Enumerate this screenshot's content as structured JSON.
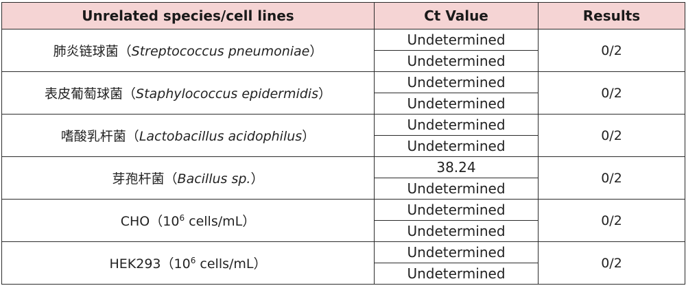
{
  "table": {
    "headers": [
      "Unrelated species/cell lines",
      "Ct Value",
      "Results"
    ],
    "rows": [
      {
        "sample_cn": "肺炎链球菌",
        "sample_paren_open": "（",
        "sample_latin": "Streptococcus pneumoniae",
        "sample_paren_close": "）",
        "ct": [
          "Undetermined",
          "Undetermined"
        ],
        "result": "0/2"
      },
      {
        "sample_cn": "表皮葡萄球菌",
        "sample_paren_open": "（",
        "sample_latin": "Staphylococcus epidermidis",
        "sample_paren_close": "）",
        "ct": [
          "Undetermined",
          "Undetermined"
        ],
        "result": "0/2"
      },
      {
        "sample_cn": "嗜酸乳杆菌",
        "sample_paren_open": "（",
        "sample_latin": "Lactobacillus acidophilus",
        "sample_paren_close": "）",
        "ct": [
          "Undetermined",
          "Undetermined"
        ],
        "result": "0/2"
      },
      {
        "sample_cn": "芽孢杆菌",
        "sample_paren_open": "（",
        "sample_latin": "Bacillus sp.",
        "sample_paren_close": "）",
        "ct": [
          "38.24",
          "Undetermined"
        ],
        "result": "0/2"
      },
      {
        "sample_name": "CHO",
        "sample_paren_open": "（",
        "conc_base": "10",
        "conc_exp": "6",
        "conc_unit": " cells/mL",
        "sample_paren_close": "）",
        "ct": [
          "Undetermined",
          "Undetermined"
        ],
        "result": "0/2"
      },
      {
        "sample_name": "HEK293",
        "sample_paren_open": "（",
        "conc_base": "10",
        "conc_exp": "6",
        "conc_unit": " cells/mL",
        "sample_paren_close": "）",
        "ct": [
          "Undetermined",
          "Undetermined"
        ],
        "result": "0/2"
      }
    ]
  }
}
